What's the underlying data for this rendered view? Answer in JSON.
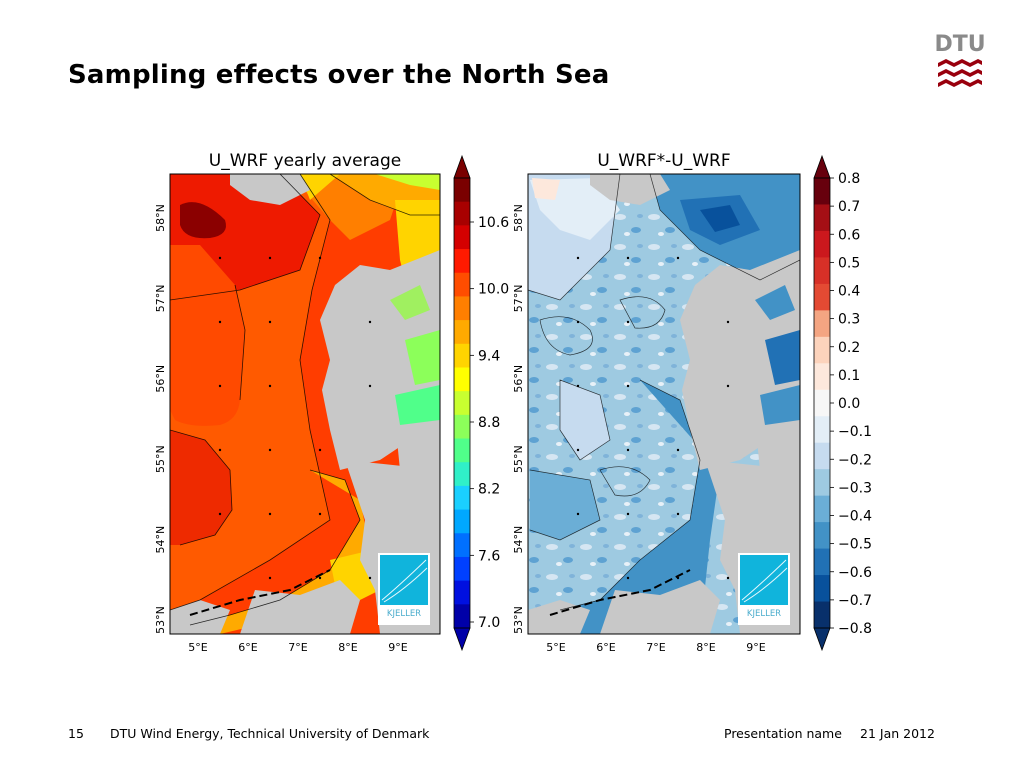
{
  "slide": {
    "title": "Sampling effects over the North Sea",
    "page_number": "15",
    "organization": "DTU Wind Energy, Technical University of Denmark",
    "presentation_name": "Presentation name",
    "date": "21 Jan 2012"
  },
  "logo": {
    "text": "DTU",
    "color": "#99000d",
    "icon": "dtu-wave-icon"
  },
  "maps": [
    {
      "title": "U_WRF yearly average",
      "lat_labels": [
        "58°N",
        "57°N",
        "56°N",
        "55°N",
        "54°N",
        "53°N"
      ],
      "lon_labels": [
        "5°E",
        "6°E",
        "7°E",
        "8°E",
        "9°E"
      ],
      "watermark": "KJELLER",
      "colorbar": {
        "labels": [
          "10.6",
          "10.0",
          "9.4",
          "8.8",
          "8.2",
          "7.6",
          "7.0"
        ],
        "colors": [
          "#7a0000",
          "#a80000",
          "#d40000",
          "#ff1a00",
          "#ff4d00",
          "#ff7f00",
          "#ffaa00",
          "#ffd400",
          "#ffff00",
          "#c8ff30",
          "#8cff5a",
          "#50ff8a",
          "#30f0c8",
          "#1ad0ff",
          "#00a8ff",
          "#0070ff",
          "#0040ff",
          "#0010e0",
          "#0000a8"
        ]
      }
    },
    {
      "title": "U_WRF*-U_WRF",
      "lat_labels": [
        "58°N",
        "57°N",
        "56°N",
        "55°N",
        "54°N",
        "53°N"
      ],
      "lon_labels": [
        "5°E",
        "6°E",
        "7°E",
        "8°E",
        "9°E"
      ],
      "watermark": "KJELLER",
      "colorbar": {
        "labels": [
          "0.8",
          "0.7",
          "0.6",
          "0.5",
          "0.4",
          "0.3",
          "0.2",
          "0.1",
          "0.0",
          "−0.1",
          "−0.2",
          "−0.3",
          "−0.4",
          "−0.5",
          "−0.6",
          "−0.7",
          "−0.8"
        ],
        "colors": [
          "#67000d",
          "#a50f15",
          "#cb181d",
          "#d73027",
          "#e34a33",
          "#f4a582",
          "#fcd3bc",
          "#fde8dc",
          "#f7f7f7",
          "#e3eef7",
          "#c6dbef",
          "#9ecae1",
          "#6baed6",
          "#4292c6",
          "#2171b5",
          "#08519c",
          "#08306b"
        ]
      }
    }
  ]
}
